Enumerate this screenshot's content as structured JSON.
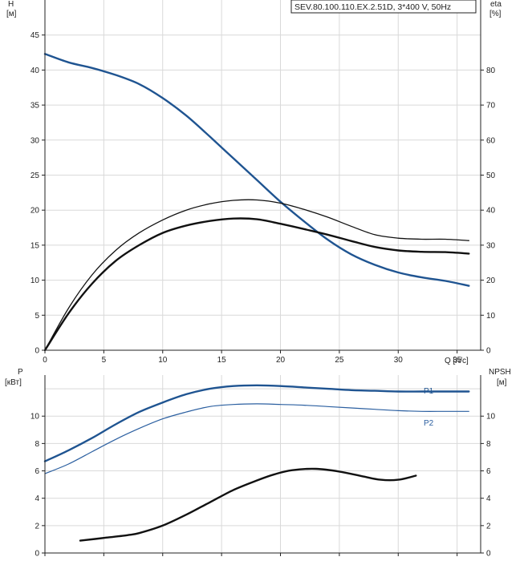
{
  "chart_data": [
    {
      "type": "line",
      "title": "SEV.80.100.110.EX.2.51D, 3*400 V, 50Hz",
      "xlabel": "Q [л/с]",
      "ylabel": [
        "H",
        "[м]"
      ],
      "y2label": [
        "eta",
        "[%]"
      ],
      "xlim": [
        0,
        37
      ],
      "ylim": [
        0,
        50
      ],
      "y2lim": [
        0,
        100
      ],
      "xticks": [
        0,
        5,
        10,
        15,
        20,
        25,
        30,
        35
      ],
      "yticks": [
        0,
        5,
        10,
        15,
        20,
        25,
        30,
        35,
        40,
        45
      ],
      "y2ticks": [
        0,
        10,
        20,
        30,
        40,
        50,
        60,
        70,
        80
      ],
      "grid": true,
      "series": [
        {
          "axis": "left",
          "color": "#1f5491",
          "x": [
            0,
            2,
            4,
            6,
            8,
            10,
            12,
            14,
            16,
            18,
            20,
            22,
            24,
            26,
            28,
            30,
            32,
            34,
            36
          ],
          "values": [
            42.3,
            41.1,
            40.3,
            39.3,
            38.0,
            36.0,
            33.5,
            30.5,
            27.4,
            24.3,
            21.2,
            18.4,
            15.8,
            13.7,
            12.2,
            11.1,
            10.4,
            9.9,
            9.2
          ]
        },
        {
          "axis": "right",
          "color": "#111111",
          "x": [
            0,
            2,
            4,
            6,
            8,
            10,
            12,
            14,
            16,
            18,
            20,
            22,
            24,
            26,
            28,
            30,
            32,
            34,
            36
          ],
          "values": [
            0,
            12,
            21.5,
            28.5,
            33.5,
            37.2,
            40.0,
            41.8,
            42.8,
            42.9,
            42.0,
            40.2,
            38.0,
            35.4,
            33.0,
            32.0,
            31.7,
            31.7,
            31.3
          ]
        },
        {
          "axis": "right",
          "color": "#111111",
          "x": [
            0,
            2,
            4,
            6,
            8,
            10,
            12,
            14,
            16,
            18,
            20,
            22,
            24,
            26,
            28,
            30,
            32,
            34,
            36
          ],
          "values": [
            0,
            10.5,
            19,
            25.5,
            30.0,
            33.5,
            35.6,
            36.9,
            37.6,
            37.4,
            36.1,
            34.6,
            33.0,
            31.2,
            29.5,
            28.5,
            28.1,
            28.0,
            27.6
          ]
        }
      ]
    },
    {
      "type": "line",
      "xlim": [
        0,
        37
      ],
      "ylabel": [
        "P",
        "[кВт]"
      ],
      "y2label": [
        "NPSH",
        "[м]"
      ],
      "ylim": [
        0,
        13
      ],
      "y2lim": [
        0,
        13
      ],
      "yticks": [
        0,
        2,
        4,
        6,
        8,
        10
      ],
      "y2ticks": [
        0,
        2,
        4,
        6,
        8,
        10
      ],
      "grid": true,
      "series": [
        {
          "name": "P1",
          "axis": "left",
          "color": "#1f5491",
          "x": [
            0,
            2,
            4,
            6,
            8,
            10,
            12,
            14,
            16,
            18,
            20,
            22,
            24,
            26,
            28,
            30,
            32,
            34,
            36
          ],
          "values": [
            6.7,
            7.5,
            8.4,
            9.4,
            10.3,
            11.0,
            11.6,
            12.0,
            12.2,
            12.25,
            12.2,
            12.1,
            12.0,
            11.9,
            11.85,
            11.8,
            11.8,
            11.8,
            11.8
          ]
        },
        {
          "name": "P2",
          "axis": "left",
          "color": "#2b5fa0",
          "x": [
            0,
            2,
            4,
            6,
            8,
            10,
            12,
            14,
            16,
            18,
            20,
            22,
            24,
            26,
            28,
            30,
            32,
            34,
            36
          ],
          "values": [
            5.8,
            6.5,
            7.4,
            8.3,
            9.1,
            9.8,
            10.3,
            10.7,
            10.85,
            10.9,
            10.85,
            10.8,
            10.7,
            10.6,
            10.5,
            10.4,
            10.35,
            10.35,
            10.35
          ]
        },
        {
          "axis": "right",
          "color": "#111111",
          "x": [
            3,
            5,
            7,
            8,
            10,
            12,
            14,
            16,
            18,
            19.5,
            21,
            23,
            25,
            27,
            28.5,
            30,
            31.5
          ],
          "values": [
            0.9,
            1.1,
            1.3,
            1.45,
            2.0,
            2.8,
            3.7,
            4.6,
            5.3,
            5.75,
            6.05,
            6.15,
            5.95,
            5.6,
            5.35,
            5.35,
            5.65
          ]
        }
      ]
    }
  ]
}
